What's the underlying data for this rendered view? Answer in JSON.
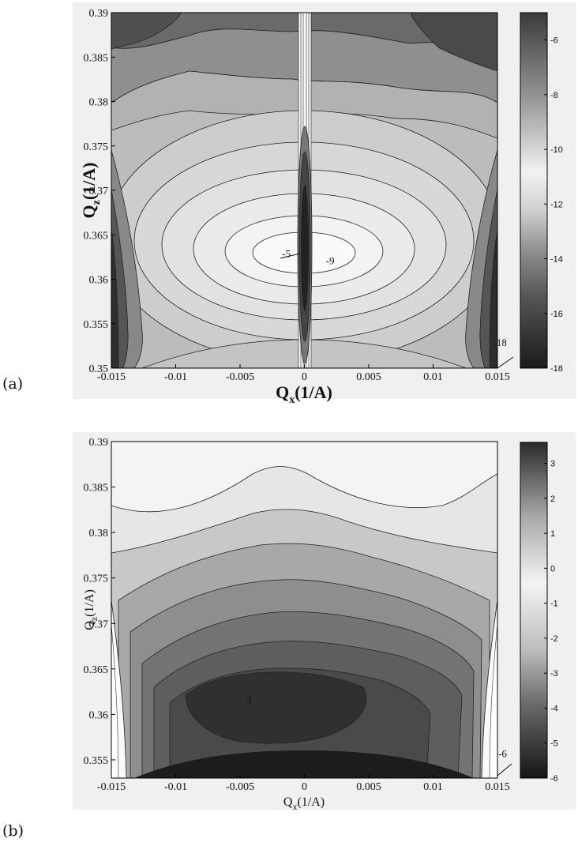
{
  "chart_data": [
    {
      "panel_label": "(a)",
      "type": "contour",
      "xlabel_main": "Q",
      "xlabel_sub": "x",
      "xlabel_unit": "(1/A)",
      "ylabel_main": "Q",
      "ylabel_sub": "z",
      "ylabel_unit": "(1/A)",
      "xlim": [
        -0.015,
        0.015
      ],
      "ylim": [
        0.35,
        0.39
      ],
      "x_ticks": [
        -0.015,
        -0.01,
        -0.005,
        0,
        0.005,
        0.01,
        0.015
      ],
      "x_tick_labels": [
        "-0.015",
        "-0.01",
        "-0.005",
        "0",
        "0.005",
        "0.01",
        "0.015"
      ],
      "y_ticks": [
        0.35,
        0.355,
        0.36,
        0.365,
        0.37,
        0.375,
        0.38,
        0.385,
        0.39
      ],
      "y_tick_labels": [
        "0.35",
        "0.355",
        "0.36",
        "0.365",
        "0.37",
        "0.375",
        "0.38",
        "0.385",
        "0.39"
      ],
      "colorbar": {
        "range": [
          -18,
          -5
        ],
        "ticks": [
          -18,
          -16,
          -14,
          -12,
          -10,
          -8,
          -6
        ],
        "tick_labels": [
          "-18",
          "-16",
          "-14",
          "-12",
          "-10",
          "-8",
          "-6"
        ]
      },
      "annotations": [
        {
          "text": "-5",
          "x": -0.0014,
          "y": 0.3625
        },
        {
          "text": "-9",
          "x": 0.002,
          "y": 0.3617
        },
        {
          "text": "-18",
          "x": 0.0152,
          "y": 0.3525
        }
      ],
      "peak": {
        "x": 0.0,
        "y": 0.3625,
        "value": -5
      },
      "grid": false
    },
    {
      "panel_label": "(b)",
      "type": "contour",
      "xlabel_main": "Q",
      "xlabel_sub": "x",
      "xlabel_unit": "(1/A)",
      "ylabel_main": "Q",
      "ylabel_sub": "z",
      "ylabel_unit": "(1/A)",
      "xlim": [
        -0.015,
        0.015
      ],
      "ylim": [
        0.353,
        0.39
      ],
      "x_ticks": [
        -0.015,
        -0.01,
        -0.005,
        0,
        0.005,
        0.01,
        0.015
      ],
      "x_tick_labels": [
        "-0.015",
        "-0.01",
        "-0.005",
        "0",
        "0.005",
        "0.01",
        "0.015"
      ],
      "y_ticks": [
        0.355,
        0.36,
        0.365,
        0.37,
        0.375,
        0.38,
        0.385,
        0.39
      ],
      "y_tick_labels": [
        "0.355",
        "0.36",
        "0.365",
        "0.37",
        "0.375",
        "0.38",
        "0.385",
        "0.39"
      ],
      "colorbar": {
        "range": [
          -6,
          3.6
        ],
        "ticks": [
          -6,
          -5,
          -4,
          -3,
          -2,
          -1,
          0,
          1,
          2,
          3
        ],
        "tick_labels": [
          "-6",
          "-5",
          "-4",
          "-3",
          "-2",
          "-1",
          "0",
          "1",
          "2",
          "3"
        ]
      },
      "annotations": [
        {
          "text": "3",
          "x": -0.0043,
          "y": 0.3612
        },
        {
          "text": "-6",
          "x": 0.0154,
          "y": 0.3553
        }
      ],
      "peak": {
        "x": -0.003,
        "y": 0.3615,
        "value": 3.6
      },
      "grid": false
    }
  ]
}
